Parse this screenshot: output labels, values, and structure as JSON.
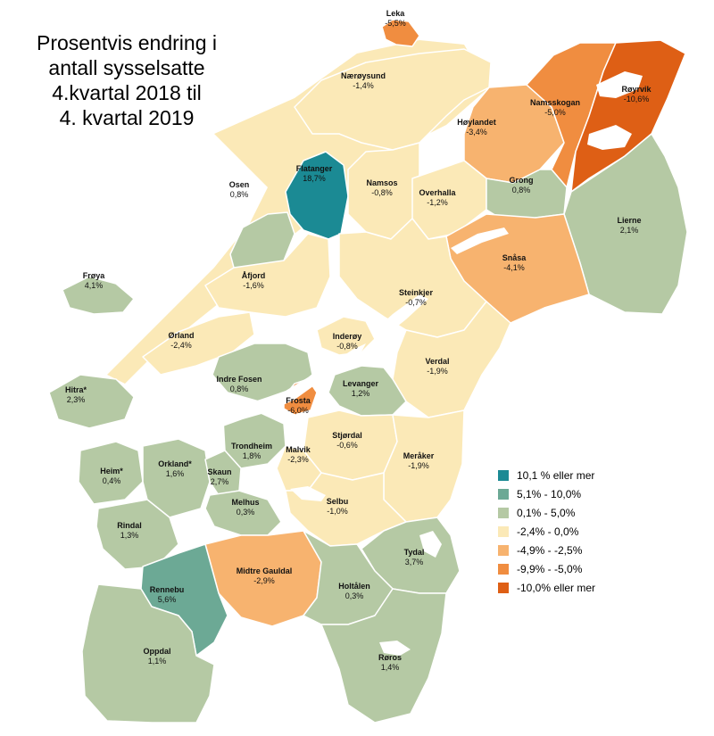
{
  "title_lines": [
    "Prosentvis endring i",
    "antall sysselsatte",
    "4.kvartal 2018 til",
    "4. kvartal 2019"
  ],
  "colors": {
    "water": "#ffffff",
    "coast_bg": "#fbe9b7",
    "border": "#ffffff",
    "cat1": "#1b8a94",
    "cat2": "#6ca995",
    "cat3": "#b5c9a4",
    "cat4": "#fbe9b7",
    "cat5": "#f7b36f",
    "cat6": "#f08d40",
    "cat7": "#de5f15"
  },
  "legend": [
    {
      "label": "10,1 % eller mer",
      "color": "#1b8a94"
    },
    {
      "label": "5,1% - 10,0%",
      "color": "#6ca995"
    },
    {
      "label": "0,1% - 5,0%",
      "color": "#b5c9a4"
    },
    {
      "label": "-2,4% - 0,0%",
      "color": "#fbe9b7"
    },
    {
      "label": "-4,9% - -2,5%",
      "color": "#f7b36f"
    },
    {
      "label": "-9,9% - -5,0%",
      "color": "#f08d40"
    },
    {
      "label": "-10,0% eller mer",
      "color": "#de5f15"
    }
  ],
  "municipalities": [
    {
      "name": "Leka",
      "value": "-5,5%",
      "change": -5.5
    },
    {
      "name": "Nærøysund",
      "value": "-1,4%",
      "change": -1.4
    },
    {
      "name": "Høylandet",
      "value": "-3,4%",
      "change": -3.4
    },
    {
      "name": "Namsskogan",
      "value": "-5,0%",
      "change": -5.0
    },
    {
      "name": "Røyrvik",
      "value": "-10,6%",
      "change": -10.6
    },
    {
      "name": "Flatanger",
      "value": "18,7%",
      "change": 18.7
    },
    {
      "name": "Osen",
      "value": "0,8%",
      "change": 0.8
    },
    {
      "name": "Namsos",
      "value": "-0,8%",
      "change": -0.8
    },
    {
      "name": "Overhalla",
      "value": "-1,2%",
      "change": -1.2
    },
    {
      "name": "Grong",
      "value": "0,8%",
      "change": 0.8
    },
    {
      "name": "Lierne",
      "value": "2,1%",
      "change": 2.1
    },
    {
      "name": "Snåsa",
      "value": "-4,1%",
      "change": -4.1
    },
    {
      "name": "Frøya",
      "value": "4,1%",
      "change": 4.1
    },
    {
      "name": "Åfjord",
      "value": "-1,6%",
      "change": -1.6
    },
    {
      "name": "Steinkjer",
      "value": "-0,7%",
      "change": -0.7
    },
    {
      "name": "Ørland",
      "value": "-2,4%",
      "change": -2.4
    },
    {
      "name": "Inderøy",
      "value": "-0,8%",
      "change": -0.8
    },
    {
      "name": "Verdal",
      "value": "-1,9%",
      "change": -1.9
    },
    {
      "name": "Hitra*",
      "value": "2,3%",
      "change": 2.3
    },
    {
      "name": "Indre Fosen",
      "value": "0,8%",
      "change": 0.8
    },
    {
      "name": "Levanger",
      "value": "1,2%",
      "change": 1.2
    },
    {
      "name": "Frosta",
      "value": "-6,0%",
      "change": -6.0
    },
    {
      "name": "Trondheim",
      "value": "1,8%",
      "change": 1.8
    },
    {
      "name": "Stjørdal",
      "value": "-0,6%",
      "change": -0.6
    },
    {
      "name": "Malvik",
      "value": "-2,3%",
      "change": -2.3
    },
    {
      "name": "Meråker",
      "value": "-1,9%",
      "change": -1.9
    },
    {
      "name": "Heim*",
      "value": "0,4%",
      "change": 0.4
    },
    {
      "name": "Orkland*",
      "value": "1,6%",
      "change": 1.6
    },
    {
      "name": "Skaun",
      "value": "2,7%",
      "change": 2.7
    },
    {
      "name": "Melhus",
      "value": "0,3%",
      "change": 0.3
    },
    {
      "name": "Selbu",
      "value": "-1,0%",
      "change": -1.0
    },
    {
      "name": "Rindal",
      "value": "1,3%",
      "change": 1.3
    },
    {
      "name": "Tydal",
      "value": "3,7%",
      "change": 3.7
    },
    {
      "name": "Midtre Gauldal",
      "value": "-2,9%",
      "change": -2.9
    },
    {
      "name": "Rennebu",
      "value": "5,6%",
      "change": 5.6
    },
    {
      "name": "Holtålen",
      "value": "0,3%",
      "change": 0.3
    },
    {
      "name": "Oppdal",
      "value": "1,1%",
      "change": 1.1
    },
    {
      "name": "Røros",
      "value": "1,4%",
      "change": 1.4
    }
  ]
}
